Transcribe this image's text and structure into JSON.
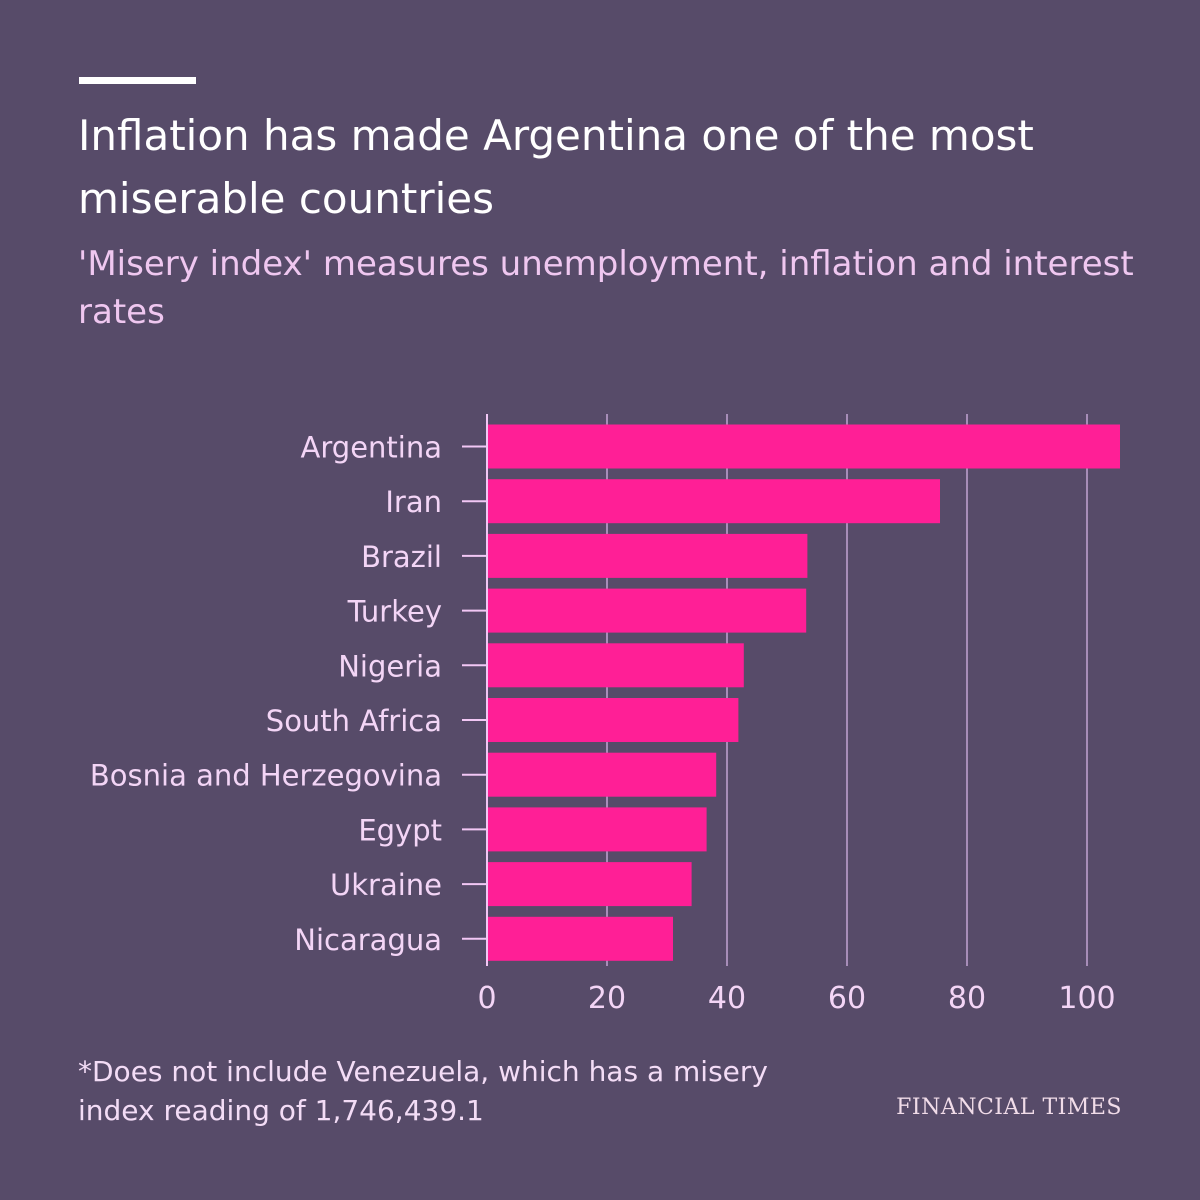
{
  "title": "Inflation has made Argentina one of the most miserable countries",
  "subtitle": "'Misery index' measures unemployment, inflation and interest rates",
  "footnote": "*Does not include Venezuela, which has a misery index reading of 1,746,439.1",
  "source": "FINANCIAL TIMES",
  "colors": {
    "background": "#574b69",
    "bar": "#ff1f96",
    "gridline": "#a78db8",
    "axis_line": "#f2c7f5",
    "label": "#f3d5f6"
  },
  "chart_data": {
    "type": "bar",
    "orientation": "horizontal",
    "title": "Inflation has made Argentina one of the most miserable countries",
    "subtitle": "'Misery index' measures unemployment, inflation and interest rates",
    "xlabel": "",
    "ylabel": "",
    "categories": [
      "Argentina",
      "Iran",
      "Brazil",
      "Turkey",
      "Nigeria",
      "South Africa",
      "Bosnia and Herzegovina",
      "Egypt",
      "Ukraine",
      "Nicaragua"
    ],
    "values": [
      105.5,
      75.5,
      53.4,
      53.2,
      42.8,
      41.9,
      38.2,
      36.6,
      34.1,
      31.0
    ],
    "xlim": [
      0,
      106
    ],
    "xticks": [
      0,
      20,
      40,
      60,
      80,
      100
    ],
    "grid": true
  }
}
